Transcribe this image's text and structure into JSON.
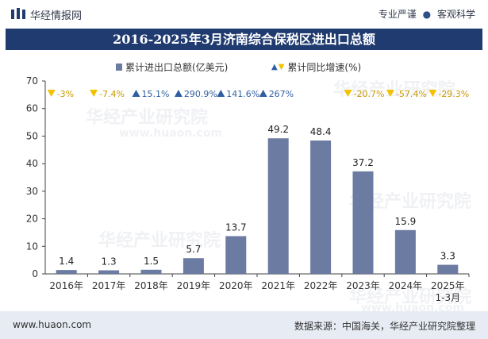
{
  "header": {
    "brand": "华经情报网",
    "tagline_left": "专业严谨",
    "tagline_sep": "●",
    "tagline_right": "客观科学"
  },
  "title": "2016-2025年3月济南综合保税区进出口总额",
  "footer": {
    "website": "www.huaon.com",
    "source": "数据来源：中国海关，华经产业研究院整理"
  },
  "watermark": {
    "text": "华经产业研究院",
    "url": "www.huaon.com"
  },
  "colors": {
    "bar": "#6b7ba1",
    "up": "#2f5fa0",
    "down": "#f2c200",
    "title_bg": "#1f3b70",
    "footer_bg": "#e7ebf3"
  },
  "chart_data": {
    "type": "bar",
    "title": "2016-2025年3月济南综合保税区进出口总额",
    "legend": [
      "累计进出口总额(亿美元)",
      "累计同比增速(%)"
    ],
    "categories": [
      "2016年",
      "2017年",
      "2018年",
      "2019年",
      "2020年",
      "2021年",
      "2022年",
      "2023年",
      "2024年",
      "2025年\n1-3月"
    ],
    "values": [
      1.4,
      1.3,
      1.5,
      5.7,
      13.7,
      49.2,
      48.4,
      37.2,
      15.9,
      3.3
    ],
    "value_labels": [
      "1.4",
      "1.3",
      "1.5",
      "5.7",
      "13.7",
      "49.2",
      "48.4",
      "37.2",
      "15.9",
      "3.3"
    ],
    "growth": [
      -3,
      -7.4,
      15.1,
      290.9,
      141.6,
      267,
      null,
      -20.7,
      -57.4,
      -29.3
    ],
    "growth_labels": [
      "-3%",
      "-7.4%",
      "15.1%",
      "290.9%",
      "141.6%",
      "267%",
      "",
      "-20.7%",
      "-57.4%",
      "-29.3%"
    ],
    "yticks": [
      0,
      10,
      20,
      30,
      40,
      50,
      60,
      70
    ],
    "ylim": [
      0,
      70
    ],
    "xlabel": "",
    "ylabel": ""
  }
}
